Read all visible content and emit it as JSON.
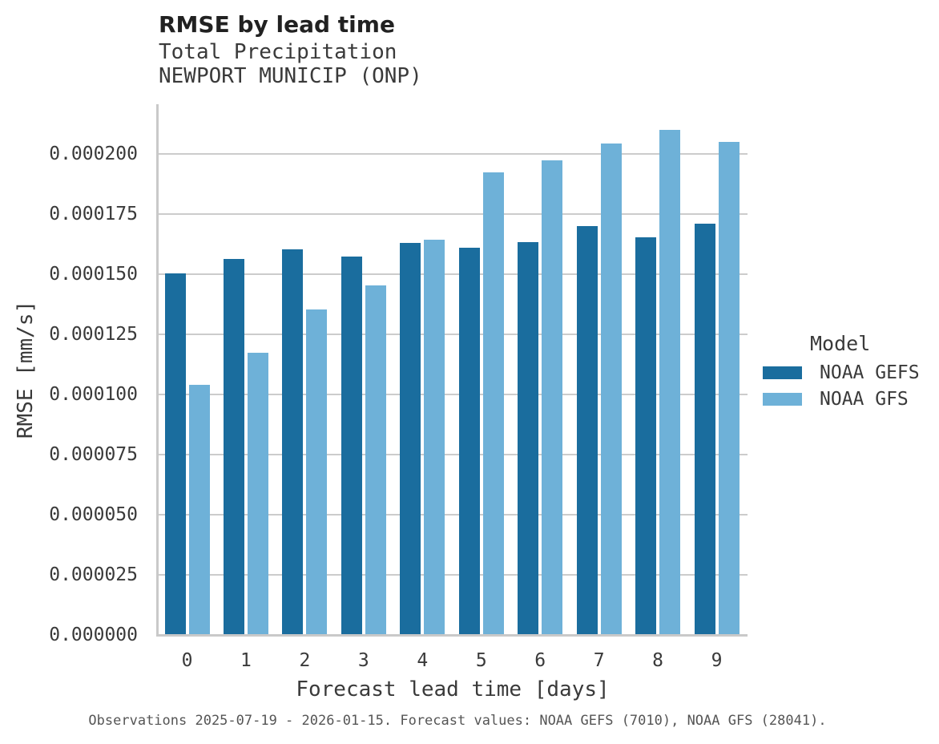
{
  "header": {
    "note": "header text binds to chart_data fields"
  },
  "legend": {
    "title": "Model"
  },
  "chart_data": {
    "type": "bar",
    "title": "RMSE by lead time",
    "subtitle": [
      "Total Precipitation",
      "NEWPORT MUNICIP (ONP)"
    ],
    "xlabel": "Forecast lead time [days]",
    "ylabel": "RMSE [mm/s]",
    "categories": [
      "0",
      "1",
      "2",
      "3",
      "4",
      "5",
      "6",
      "7",
      "8",
      "9"
    ],
    "series": [
      {
        "name": "NOAA GEFS",
        "color": "#1a6d9e",
        "values": [
          0.0001505,
          0.0001565,
          0.0001605,
          0.0001575,
          0.000163,
          0.000161,
          0.0001635,
          0.00017,
          0.0001655,
          0.000171
        ]
      },
      {
        "name": "NOAA GFS",
        "color": "#6eb1d8",
        "values": [
          0.000104,
          0.0001175,
          0.0001355,
          0.0001455,
          0.0001645,
          0.0001925,
          0.0001975,
          0.0002045,
          0.00021,
          0.000205
        ]
      }
    ],
    "ylim": [
      0,
      0.00022
    ],
    "ytick_values": [
      0,
      2.5e-05,
      5e-05,
      7.5e-05,
      0.0001,
      0.000125,
      0.00015,
      0.000175,
      0.0002
    ],
    "ytick_labels": [
      "0.000000",
      "0.000025",
      "0.000050",
      "0.000075",
      "0.000100",
      "0.000125",
      "0.000150",
      "0.000175",
      "0.000200"
    ],
    "legend_title": "Model",
    "legend_position": "right",
    "grid": true,
    "grid_color": "#cccccc",
    "caption": "Observations 2025-07-19 - 2026-01-15. Forecast values: NOAA GEFS (7010), NOAA GFS (28041)."
  }
}
